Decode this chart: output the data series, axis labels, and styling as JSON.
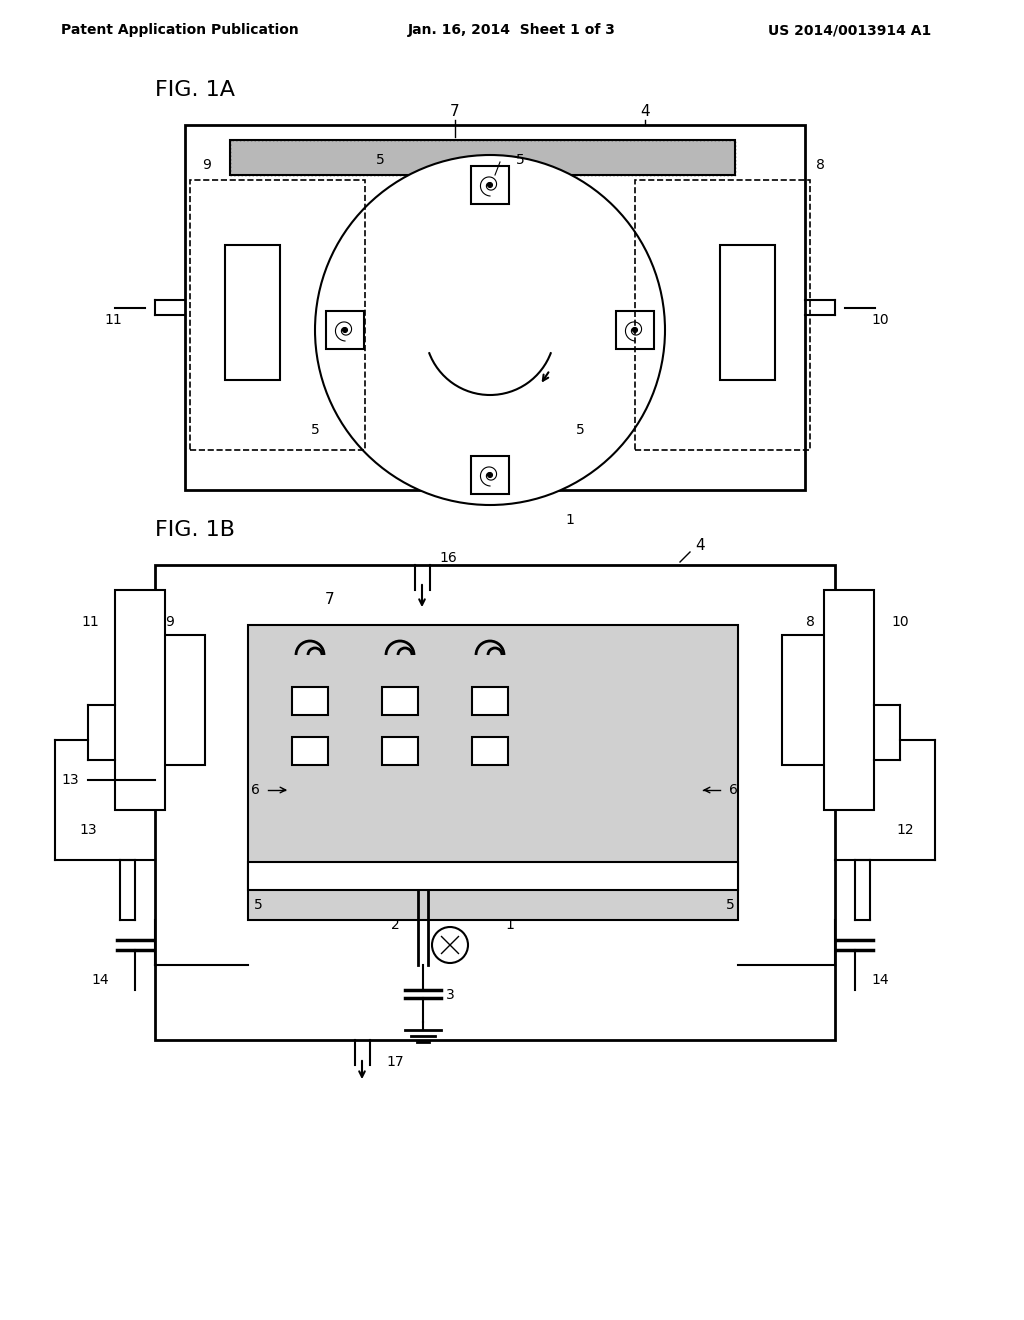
{
  "header_left": "Patent Application Publication",
  "header_center": "Jan. 16, 2014  Sheet 1 of 3",
  "header_right": "US 2014/0013914 A1",
  "fig1a_label": "FIG. 1A",
  "fig1b_label": "FIG. 1B",
  "bg_color": "#ffffff",
  "line_color": "#000000",
  "gray_fill": "#c8c8c8",
  "dot_fill": "#d8d8d8"
}
